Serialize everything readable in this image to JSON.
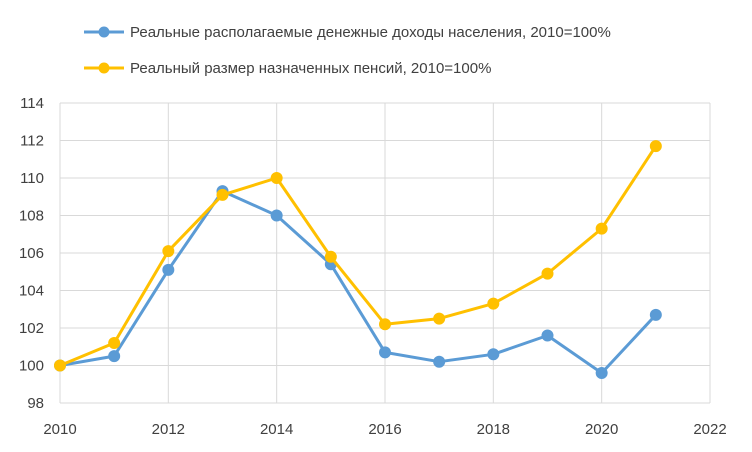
{
  "chart_data": {
    "type": "line",
    "series": [
      {
        "name": "Реальные располагаемые денежные доходы населения, 2010=100%",
        "color": "#5B9BD5",
        "x": [
          2010,
          2011,
          2012,
          2013,
          2014,
          2015,
          2016,
          2017,
          2018,
          2019,
          2020,
          2021
        ],
        "values": [
          100.0,
          100.5,
          105.1,
          109.3,
          108.0,
          105.4,
          100.7,
          100.2,
          100.6,
          101.6,
          99.6,
          102.7
        ]
      },
      {
        "name": "Реальный размер назначенных пенсий, 2010=100%",
        "color": "#FFC000",
        "x": [
          2010,
          2011,
          2012,
          2013,
          2014,
          2015,
          2016,
          2017,
          2018,
          2019,
          2020,
          2021
        ],
        "values": [
          100.0,
          101.2,
          106.1,
          109.1,
          110.0,
          105.8,
          102.2,
          102.5,
          103.3,
          104.9,
          107.3,
          111.7
        ]
      }
    ],
    "xlim": [
      2010,
      2022
    ],
    "ylim": [
      98,
      114
    ],
    "x_ticks": [
      "2010",
      "2012",
      "2014",
      "2016",
      "2018",
      "2020",
      "2022"
    ],
    "y_ticks": [
      "98",
      "100",
      "102",
      "104",
      "106",
      "108",
      "110",
      "112",
      "114"
    ],
    "grid": true,
    "legend": "top"
  }
}
